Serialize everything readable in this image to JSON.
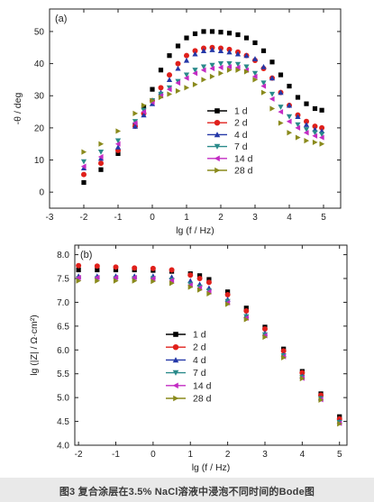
{
  "figure_caption": "图3   复合涂层在3.5% NaCl溶液中浸泡不同时间的Bode图",
  "chart_data": [
    {
      "type": "scatter",
      "panel_label": "(a)",
      "xlabel": "lg (f / Hz)",
      "ylabel": "-θ / deg",
      "xlim": [
        -3,
        5.5
      ],
      "ylim": [
        -5,
        57
      ],
      "xticks": [
        -3,
        -2,
        -1,
        0,
        1,
        2,
        3,
        4,
        5
      ],
      "yticks": [
        0,
        10,
        20,
        30,
        40,
        50
      ],
      "grid": false,
      "legend_position": "lower-left",
      "series": [
        {
          "name": "1 d",
          "color": "#000000",
          "marker": "square",
          "x": [
            -2,
            -1.5,
            -1,
            -0.5,
            -0.25,
            0,
            0.25,
            0.5,
            0.75,
            1,
            1.25,
            1.5,
            1.75,
            2,
            2.25,
            2.5,
            2.75,
            3,
            3.25,
            3.5,
            3.75,
            4,
            4.25,
            4.5,
            4.75,
            4.95
          ],
          "y": [
            3,
            7,
            12,
            21,
            26.5,
            32,
            38,
            42.5,
            45.5,
            48,
            49.3,
            50,
            50,
            49.8,
            49.5,
            49,
            48,
            46.5,
            44,
            40.5,
            36.5,
            33,
            29.5,
            27.5,
            26,
            25.5
          ]
        },
        {
          "name": "2 d",
          "color": "#e0201b",
          "marker": "circle",
          "x": [
            -2,
            -1.5,
            -1,
            -0.5,
            -0.25,
            0,
            0.25,
            0.5,
            0.75,
            1,
            1.25,
            1.5,
            1.75,
            2,
            2.25,
            2.5,
            2.75,
            3,
            3.25,
            3.5,
            3.75,
            4,
            4.25,
            4.5,
            4.75,
            4.95
          ],
          "y": [
            5.5,
            9,
            13,
            20.5,
            24.5,
            28.5,
            32.5,
            36.5,
            40,
            42.5,
            44,
            44.8,
            45,
            44.8,
            44.4,
            43.6,
            42.5,
            41,
            38.5,
            35.5,
            31,
            27,
            24,
            22,
            20.5,
            20
          ]
        },
        {
          "name": "4 d",
          "color": "#2438a8",
          "marker": "triangle-up",
          "x": [
            -2,
            -1.5,
            -1,
            -0.5,
            -0.25,
            0,
            0.25,
            0.5,
            0.75,
            1,
            1.25,
            1.5,
            1.75,
            2,
            2.25,
            2.5,
            2.75,
            3,
            3.25,
            3.5,
            3.75,
            4,
            4.25,
            4.5,
            4.75,
            4.95
          ],
          "y": [
            7.5,
            10.5,
            14,
            20.5,
            24,
            27.5,
            31,
            35,
            38.5,
            41,
            43,
            44,
            44.3,
            44,
            43.6,
            43,
            42.5,
            41.5,
            39,
            35.5,
            31,
            27,
            23.5,
            21,
            19.5,
            19
          ]
        },
        {
          "name": "7 d",
          "color": "#2a8a8a",
          "marker": "triangle-down",
          "x": [
            -2,
            -1.5,
            -1,
            -0.5,
            -0.25,
            0,
            0.25,
            0.5,
            0.75,
            1,
            1.25,
            1.5,
            1.75,
            2,
            2.25,
            2.5,
            2.75,
            3,
            3.25,
            3.5,
            3.75,
            4,
            4.25,
            4.5,
            4.75,
            4.95
          ],
          "y": [
            9.5,
            12.5,
            16,
            22,
            25.5,
            28.5,
            30.5,
            32.5,
            34.5,
            36.5,
            38,
            39,
            39.5,
            40,
            40,
            39.8,
            39,
            37,
            34,
            30.5,
            26.5,
            23.5,
            21,
            19.5,
            18.5,
            18
          ]
        },
        {
          "name": "14 d",
          "color": "#c32bc3",
          "marker": "triangle-left",
          "x": [
            -2,
            -1.5,
            -1,
            -0.5,
            -0.25,
            0,
            0.25,
            0.5,
            0.75,
            1,
            1.25,
            1.5,
            1.75,
            2,
            2.25,
            2.5,
            2.75,
            3,
            3.25,
            3.5,
            3.75,
            4,
            4.25,
            4.5,
            4.75,
            4.95
          ],
          "y": [
            8,
            11,
            15,
            21.5,
            25,
            28,
            30,
            32,
            34,
            35.5,
            37,
            38,
            38.5,
            38.8,
            39,
            38.8,
            38,
            36,
            33,
            29,
            25,
            22,
            20,
            18.5,
            17.5,
            17
          ]
        },
        {
          "name": "28 d",
          "color": "#8a8a1c",
          "marker": "triangle-right",
          "x": [
            -2,
            -1.5,
            -1,
            -0.5,
            -0.25,
            0,
            0.25,
            0.5,
            0.75,
            1,
            1.25,
            1.5,
            1.75,
            2,
            2.25,
            2.5,
            2.75,
            3,
            3.25,
            3.5,
            3.75,
            4,
            4.25,
            4.5,
            4.75,
            4.95
          ],
          "y": [
            12.5,
            15,
            19,
            24.5,
            27,
            28.5,
            29.5,
            30.5,
            31.5,
            32.5,
            33.5,
            35,
            36,
            37,
            38,
            38,
            37.5,
            35,
            31,
            26,
            21.5,
            18.5,
            17,
            16,
            15.5,
            15
          ]
        }
      ]
    },
    {
      "type": "scatter",
      "panel_label": "(b)",
      "xlabel": "lg (f / Hz)",
      "ylabel": "lg (|Z| / Ω·cm²)",
      "xlim": [
        -2.1,
        5.2
      ],
      "ylim": [
        4.0,
        8.2
      ],
      "xticks": [
        -2,
        -1,
        0,
        1,
        2,
        3,
        4,
        5
      ],
      "yticks": [
        4.0,
        4.5,
        5.0,
        5.5,
        6.0,
        6.5,
        7.0,
        7.5,
        8.0
      ],
      "grid": false,
      "legend_position": "center-left",
      "series": [
        {
          "name": "1 d",
          "color": "#000000",
          "marker": "square",
          "x": [
            -2,
            -1.5,
            -1,
            -0.5,
            0,
            0.5,
            1,
            1.25,
            1.5,
            2,
            2.5,
            3,
            3.5,
            4,
            4.5,
            5
          ],
          "y": [
            7.68,
            7.68,
            7.68,
            7.68,
            7.67,
            7.65,
            7.6,
            7.56,
            7.48,
            7.22,
            6.88,
            6.48,
            6.02,
            5.55,
            5.08,
            4.6
          ]
        },
        {
          "name": "2 d",
          "color": "#e0201b",
          "marker": "circle",
          "x": [
            -2,
            -1.5,
            -1,
            -0.5,
            0,
            0.5,
            1,
            1.25,
            1.5,
            2,
            2.5,
            3,
            3.5,
            4,
            4.5,
            5
          ],
          "y": [
            7.77,
            7.76,
            7.74,
            7.72,
            7.71,
            7.68,
            7.57,
            7.5,
            7.42,
            7.16,
            6.82,
            6.44,
            5.98,
            5.52,
            5.05,
            4.55
          ]
        },
        {
          "name": "4 d",
          "color": "#2438a8",
          "marker": "triangle-up",
          "x": [
            -2,
            -1.5,
            -1,
            -0.5,
            0,
            0.5,
            1,
            1.25,
            1.5,
            2,
            2.5,
            3,
            3.5,
            4,
            4.5,
            5
          ],
          "y": [
            7.55,
            7.55,
            7.55,
            7.55,
            7.55,
            7.53,
            7.45,
            7.38,
            7.3,
            7.06,
            6.72,
            6.35,
            5.9,
            5.45,
            4.99,
            4.5
          ]
        },
        {
          "name": "7 d",
          "color": "#2a8a8a",
          "marker": "triangle-down",
          "x": [
            -2,
            -1.5,
            -1,
            -0.5,
            0,
            0.5,
            1,
            1.25,
            1.5,
            2,
            2.5,
            3,
            3.5,
            4,
            4.5,
            5
          ],
          "y": [
            7.5,
            7.5,
            7.5,
            7.5,
            7.5,
            7.47,
            7.38,
            7.32,
            7.24,
            7.02,
            6.7,
            6.32,
            5.88,
            5.43,
            4.98,
            4.48
          ]
        },
        {
          "name": "14 d",
          "color": "#c32bc3",
          "marker": "triangle-left",
          "x": [
            -2,
            -1.5,
            -1,
            -0.5,
            0,
            0.5,
            1,
            1.25,
            1.5,
            2,
            2.5,
            3,
            3.5,
            4,
            4.5,
            5
          ],
          "y": [
            7.52,
            7.52,
            7.52,
            7.52,
            7.5,
            7.46,
            7.36,
            7.3,
            7.22,
            6.99,
            6.67,
            6.3,
            5.86,
            5.41,
            4.96,
            4.46
          ]
        },
        {
          "name": "28 d",
          "color": "#8a8a1c",
          "marker": "triangle-right",
          "x": [
            -2,
            -1.5,
            -1,
            -0.5,
            0,
            0.5,
            1,
            1.25,
            1.5,
            2,
            2.5,
            3,
            3.5,
            4,
            4.5,
            5
          ],
          "y": [
            7.45,
            7.45,
            7.45,
            7.45,
            7.44,
            7.4,
            7.32,
            7.26,
            7.18,
            6.96,
            6.64,
            6.27,
            5.84,
            5.4,
            4.95,
            4.45
          ]
        }
      ]
    }
  ]
}
